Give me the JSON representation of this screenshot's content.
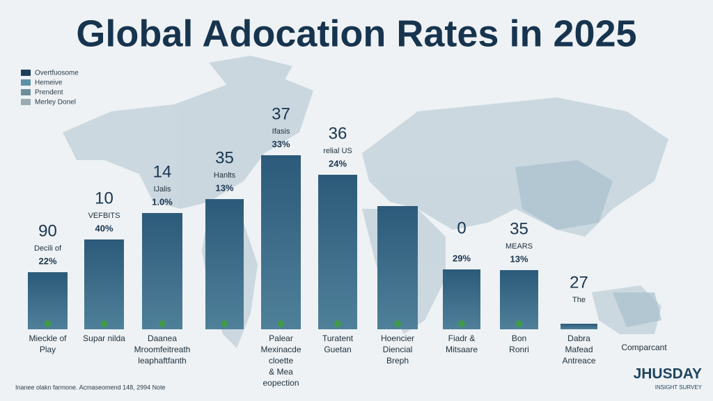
{
  "title": "Global Adocation Rates in 2025",
  "legend": [
    "Overtfuosome",
    "Hemeive",
    "Prendent",
    "Merley Donel"
  ],
  "bars": [
    {
      "number": "90",
      "caption": "Decili of",
      "percent": "22%",
      "label": [
        "Mieckle of",
        "Play"
      ]
    },
    {
      "number": "10",
      "caption": "VEFBITS",
      "percent": "40%",
      "label": [
        "Supar nilda"
      ]
    },
    {
      "number": "14",
      "caption": "IJalis",
      "percent": "1.0%",
      "label": [
        "Daanea",
        "Mroomfeitreath",
        "leaphaftfanth"
      ]
    },
    {
      "number": "35",
      "caption": "Hanlts",
      "percent": "13%"
    },
    {
      "number": "37",
      "caption": "Ifasis",
      "percent": "33%",
      "label": [
        "Palear",
        "Mexinacde",
        "cloette",
        "& Mea",
        "eopection"
      ]
    },
    {
      "number": "36",
      "caption": "relial US",
      "percent": "24%",
      "label": [
        "Turatent",
        "Guetan"
      ]
    },
    {
      "label": [
        "Hoencier",
        "Diencial",
        "Breph"
      ]
    },
    {
      "number": "0",
      "percent": "29%",
      "label": [
        "Fiadr &",
        "Mitsaare"
      ]
    },
    {
      "number": "35",
      "caption": "MEARS",
      "percent": "13%",
      "label": [
        "Bon",
        "Ronri"
      ]
    },
    {
      "number": "27",
      "caption": "The",
      "label": [
        "Dabra",
        "Mafead",
        "Antreace"
      ]
    }
  ],
  "side_label": "Comparcant",
  "footer": "Inanee olakn farmone. Acmaseomend 148, 2994 Note",
  "brand": {
    "name": "JHUSDAY",
    "tagline": "INSIGHT SURVEY"
  }
}
